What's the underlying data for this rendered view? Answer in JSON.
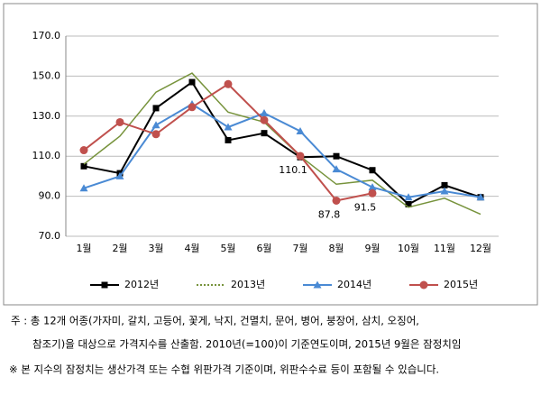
{
  "chart_data": {
    "type": "line",
    "categories": [
      "1월",
      "2월",
      "3월",
      "4월",
      "5월",
      "6월",
      "7월",
      "8월",
      "9월",
      "10월",
      "11월",
      "12월"
    ],
    "ylim": [
      70,
      170
    ],
    "yticks": [
      {
        "value": 70,
        "label": "70.0"
      },
      {
        "value": 90,
        "label": "90.0"
      },
      {
        "value": 110,
        "label": "110.0"
      },
      {
        "value": 130,
        "label": "130.0"
      },
      {
        "value": 150,
        "label": "150.0"
      },
      {
        "value": 170,
        "label": "170.0"
      }
    ],
    "grid": true,
    "series": [
      {
        "name": "2012년",
        "color": "#000000",
        "marker": "square",
        "values": [
          105,
          101.5,
          134,
          147,
          118,
          121.5,
          109.5,
          110,
          103,
          86,
          95.5,
          89.5
        ]
      },
      {
        "name": "2013년",
        "color": "#77933c",
        "marker": "none",
        "values": [
          106,
          120,
          142,
          151.5,
          132,
          127,
          110,
          96,
          98,
          84.5,
          89,
          81
        ]
      },
      {
        "name": "2014년",
        "color": "#4a8ad4",
        "marker": "triangle",
        "values": [
          94,
          100,
          125.5,
          136,
          124.5,
          131.5,
          122.5,
          103.5,
          94.5,
          89.5,
          92.5,
          89.5
        ]
      },
      {
        "name": "2015년",
        "color": "#c0504d",
        "marker": "circle",
        "values": [
          113,
          127,
          121,
          134.5,
          146,
          128,
          110.1,
          87.8,
          91.5,
          null,
          null,
          null
        ],
        "value_labels": [
          null,
          null,
          null,
          null,
          null,
          null,
          "110.1",
          "87.8",
          "91.5",
          null,
          null,
          null
        ]
      }
    ]
  },
  "notes": [
    "주 : 총 12개 어종(가자미, 갈치, 고등어, 꽃게, 낙지, 건멸치, 문어, 병어, 붕장어, 삼치, 오징어,",
    "참조기)을 대상으로 가격지수를 산출함. 2010년(=100)이 기준연도이며, 2015년 9월은 잠정치임",
    "※ 본 지수의 잠정치는 생산가격 또는 수협 위판가격 기준이며, 위판수수료 등이 포함될 수 있습니다."
  ]
}
